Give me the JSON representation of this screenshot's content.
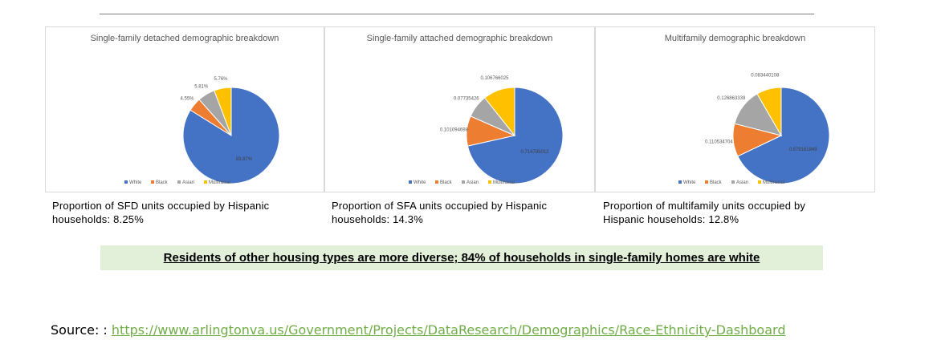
{
  "charts": [
    {
      "type": "pie",
      "title": "Single-family detached demographic breakdown",
      "categories": [
        "White",
        "Black",
        "Asian",
        "Multiracial"
      ],
      "values": [
        83.87,
        4.55,
        5.81,
        5.76
      ],
      "labels": [
        "83.87%",
        "4.55%",
        "5.81%",
        "5.76%"
      ],
      "legend": "bottom"
    },
    {
      "type": "pie",
      "title": "Single-family attached demographic breakdown",
      "categories": [
        "White",
        "Black",
        "Asian",
        "Multiracial"
      ],
      "values": [
        0.714785012,
        0.101094698,
        0.07735426,
        0.106766025
      ],
      "labels": [
        "0.714785012",
        "0.101094698",
        "0.07735426",
        "0.106766025"
      ],
      "legend": "bottom"
    },
    {
      "type": "pie",
      "title": "Multifamily demographic breakdown",
      "categories": [
        "White",
        "Black",
        "Asian",
        "Multiracial"
      ],
      "values": [
        0.679161849,
        0.110534704,
        0.126863339,
        0.083440108
      ],
      "labels": [
        "0.679161849",
        "0.110534704",
        "0.126863339",
        "0.083440108"
      ],
      "legend": "bottom"
    }
  ],
  "series_colors": [
    "#4472c4",
    "#ed7d31",
    "#a5a5a5",
    "#ffc000"
  ],
  "captions": [
    [
      "Proportion of SFD units occupied by Hispanic",
      "households: 8.25%"
    ],
    [
      "Proportion of SFA units occupied by Hispanic",
      "households: 14.3%"
    ],
    [
      "Proportion of multifamily units occupied by",
      "Hispanic households: 12.8%"
    ]
  ],
  "banner": "Residents of other housing types are more diverse; 84% of households in single-family homes are white",
  "source": {
    "prefix": "Source: : ",
    "link": "https://www.arlingtonva.us/Government/Projects/DataResearch/Demographics/Race-Ethnicity-Dashboard"
  }
}
